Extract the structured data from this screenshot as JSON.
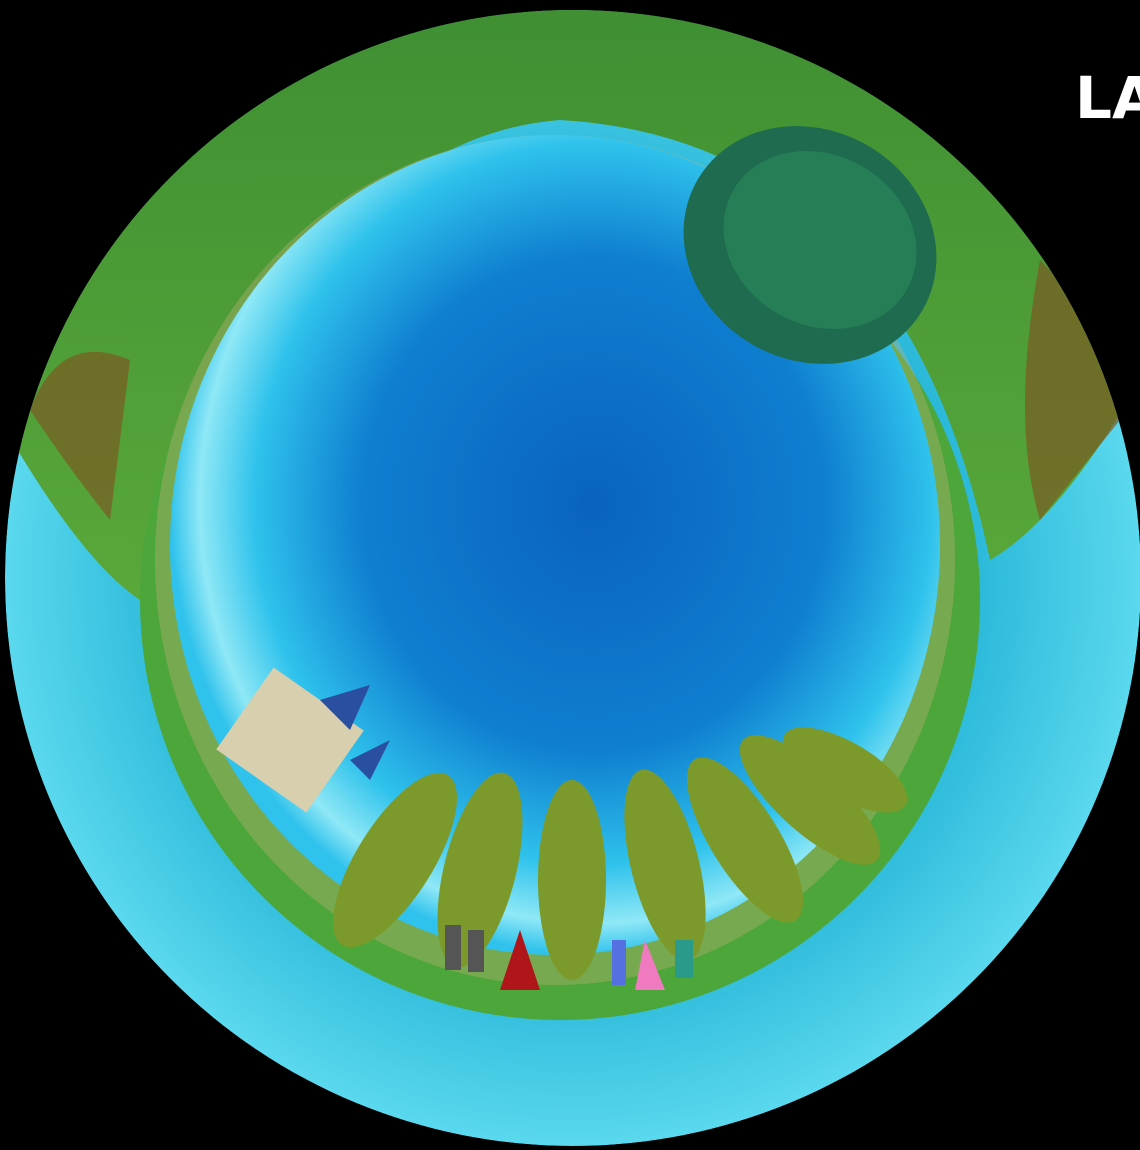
{
  "title_fragment": "LA"
}
